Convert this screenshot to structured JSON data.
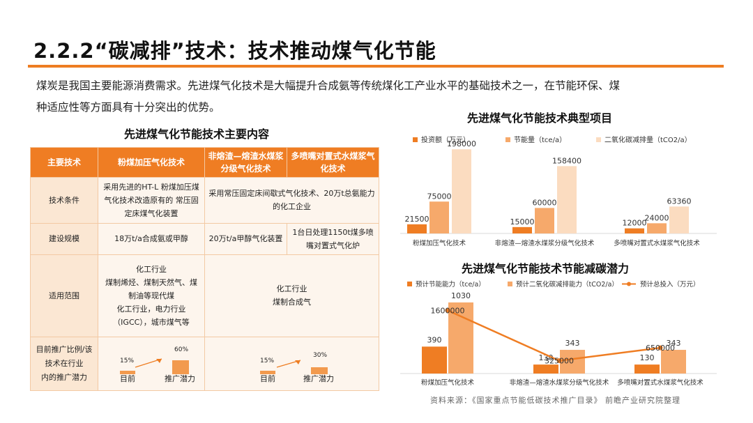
{
  "header": {
    "title": "2.2.2“碳减排”技术：技术推动煤气化节能",
    "intro_line1": "煤炭是我国主要能源消费需求。先进煤气化技术是大幅提升合成氨等传统煤化工产业水平的基础技术之一，在节能环保、煤",
    "intro_line2": "种适应性等方面具有十分突出的优势。"
  },
  "table": {
    "title": "先进煤气化节能技术主要内容",
    "headers": [
      "主要技术",
      "粉煤加压气化技术",
      "非熔渣—熔渣水煤浆分级气化技术",
      "多喷嘴对置式水煤浆气化技术"
    ],
    "rows": {
      "conditions": {
        "label": "技术条件",
        "c1": "采用先进的HT-L 粉煤加压煤气化技术改造原有的 常压固定床煤气化装置",
        "c2": "采用常压固定床间歇式气化技术、20万t总氨能力的化工企业"
      },
      "scale": {
        "label": "建设规模",
        "c1": "18万t/a合成氨或甲醇",
        "c2": "20万t/a甲醇气化装置",
        "c3": "1台日处理1150t煤多喷嘴对置式气化炉"
      },
      "scope": {
        "label": "适用范围",
        "c1_lines": [
          "化工行业",
          "煤制烯烃、煤制天然气、煤",
          "制油等现代煤",
          "化工行业，电力行业",
          "（IGCC），城市煤气等"
        ],
        "c2_lines": [
          "化工行业",
          "煤制合成气"
        ]
      },
      "potential": {
        "label_lines": [
          "目前推广比例/该",
          "技术在行业",
          "内的推广潜力"
        ],
        "current_label": "目前",
        "potential_label": "推广潜力",
        "p1": {
          "current": 15,
          "potential": 60,
          "current_text": "15%",
          "potential_text": "60%"
        },
        "p2": {
          "current": 15,
          "potential": 30,
          "current_text": "15%",
          "potential_text": "30%"
        }
      }
    }
  },
  "source": "资料来源：《国家重点节能低碳技术推广目录》 前瞻产业研究院整理",
  "colors": {
    "accent": "#ee7d22",
    "bar_dark": "#ef7d23",
    "bar_mid": "#f6a96b",
    "bar_light": "#fbdcc0"
  },
  "chart_data": [
    {
      "type": "bar",
      "title": "先进煤气化节能技术典型项目",
      "categories": [
        "粉煤加压气化技术",
        "非熔渣—熔渣水煤浆分级气化技术",
        "多喷嘴对置式水煤浆气化技术"
      ],
      "series": [
        {
          "name": "投资额（万元）",
          "values": [
            21500,
            15000,
            12000
          ],
          "labels": [
            "21500",
            "15000",
            "12000"
          ]
        },
        {
          "name": "节能量（tce/a）",
          "values": [
            75000,
            60000,
            24000
          ],
          "labels": [
            "75000",
            "60000",
            "24000"
          ]
        },
        {
          "name": "二氧化碳减排量（tCO2/a）",
          "values": [
            198000,
            158400,
            63360
          ],
          "labels": [
            "198000",
            "158400",
            "63360"
          ]
        }
      ],
      "ylim": [
        0,
        200000
      ],
      "legend": "top",
      "grid": false
    },
    {
      "type": "bar",
      "title": "先进煤气化节能技术节能减碳潜力",
      "categories": [
        "粉煤加压气化技术",
        "非熔渣—熔渣水煤浆分级气化技术",
        "多喷嘴对置式水煤浆气化技术"
      ],
      "series": [
        {
          "name": "预计节能能力（tce/a）",
          "values": [
            390,
            130,
            130
          ],
          "labels": [
            "390",
            "130",
            "130"
          ]
        },
        {
          "name": "预计二氧化碳减排能力（tCO2/a）",
          "values": [
            1030,
            343,
            343
          ],
          "labels": [
            "1030",
            "343",
            "343"
          ]
        },
        {
          "name": "预计总投入（万元）",
          "type": "line",
          "values": [
            1600000,
            325000,
            650000
          ],
          "labels": [
            "1600000",
            "325000",
            "650000"
          ]
        }
      ],
      "ylim": [
        0,
        1030
      ],
      "y2lim": [
        0,
        1800000
      ],
      "legend": "top",
      "grid": false
    }
  ]
}
